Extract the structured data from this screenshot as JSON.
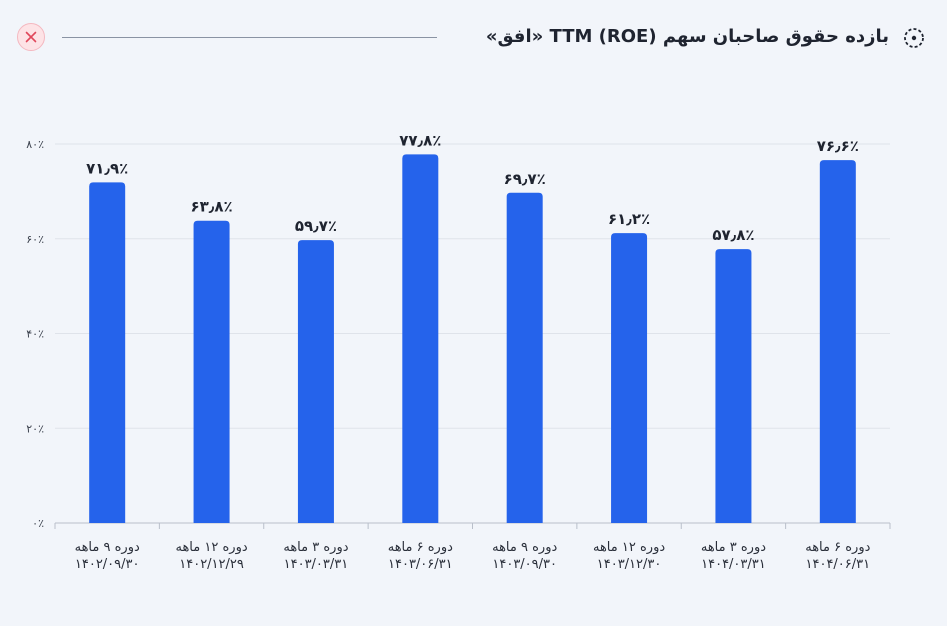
{
  "header": {
    "title": "بازده حقوق صاحبان سهم TTM (ROE) «افق»",
    "close_icon": "close-icon",
    "title_icon": "dotted-circle-icon"
  },
  "colors": {
    "bar": "#2563eb",
    "grid": "#dfe3ea",
    "axis": "#b9bfca",
    "close": "#e0475b"
  },
  "chart_data": {
    "type": "bar",
    "categories": [
      [
        "دوره ۹ ماهه",
        "۱۴۰۲/۰۹/۳۰"
      ],
      [
        "دوره ۱۲ ماهه",
        "۱۴۰۲/۱۲/۲۹"
      ],
      [
        "دوره ۳ ماهه",
        "۱۴۰۳/۰۳/۳۱"
      ],
      [
        "دوره ۶ ماهه",
        "۱۴۰۳/۰۶/۳۱"
      ],
      [
        "دوره ۹ ماهه",
        "۱۴۰۳/۰۹/۳۰"
      ],
      [
        "دوره ۱۲ ماهه",
        "۱۴۰۳/۱۲/۳۰"
      ],
      [
        "دوره ۳ ماهه",
        "۱۴۰۴/۰۳/۳۱"
      ],
      [
        "دوره ۶ ماهه",
        "۱۴۰۴/۰۶/۳۱"
      ]
    ],
    "values": [
      71.9,
      63.8,
      59.7,
      77.8,
      69.7,
      61.2,
      57.8,
      76.6
    ],
    "value_labels": [
      "۷۱٫۹٪",
      "۶۳٫۸٪",
      "۵۹٫۷٪",
      "۷۷٫۸٪",
      "۶۹٫۷٪",
      "۶۱٫۲٪",
      "۵۷٫۸٪",
      "۷۶٫۶٪"
    ],
    "ylim": [
      0,
      80
    ],
    "yticks": [
      0,
      20,
      40,
      60,
      80
    ],
    "ytick_labels": [
      "۰٪",
      "۲۰٪",
      "۴۰٪",
      "۶۰٪",
      "۸۰٪"
    ],
    "grid": true
  }
}
